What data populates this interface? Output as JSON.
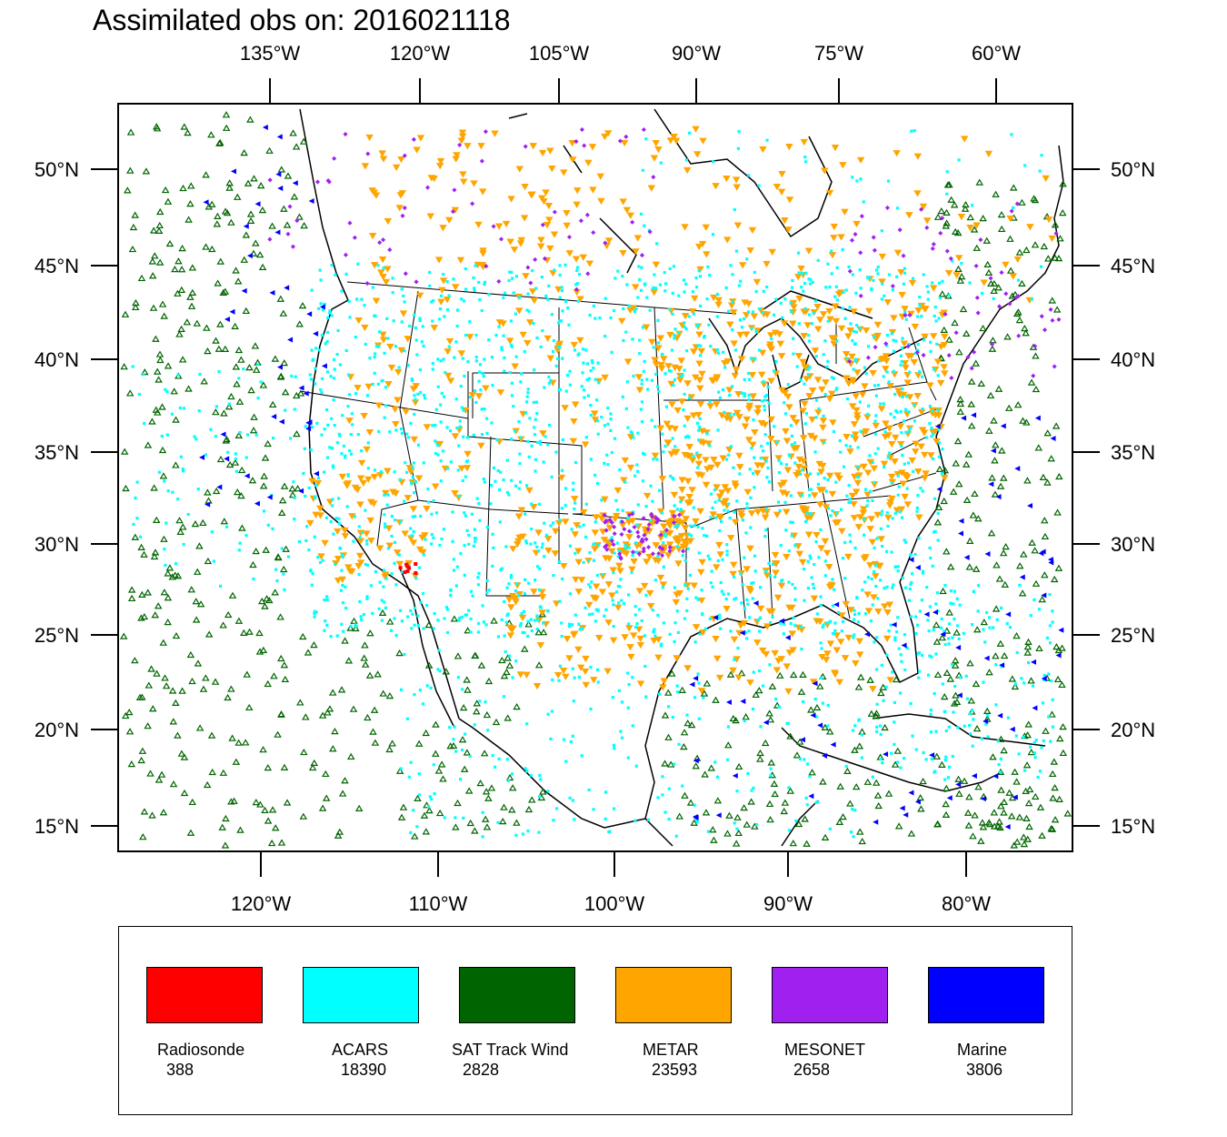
{
  "title": "Assimilated obs on: 2016021118",
  "top_lon_labels": [
    "135°W",
    "120°W",
    "105°W",
    "90°W",
    "75°W",
    "60°W"
  ],
  "bottom_lon_labels": [
    "120°W",
    "110°W",
    "100°W",
    "90°W",
    "80°W"
  ],
  "lat_labels": [
    "50°N",
    "45°N",
    "40°N",
    "35°N",
    "30°N",
    "25°N",
    "20°N",
    "15°N"
  ],
  "colors": {
    "radiosonde": "#ff0000",
    "acars": "#00ffff",
    "sat_track_wind": "#006400",
    "metar": "#ffa500",
    "mesonet": "#a020f0",
    "marine": "#0000ff",
    "coastline": "#000000"
  },
  "legend": [
    {
      "label": "Radiosonde",
      "count": "388",
      "color": "#ff0000"
    },
    {
      "label": "ACARS",
      "count": "18390",
      "color": "#00ffff"
    },
    {
      "label": "SAT Track Wind",
      "count": "2828",
      "color": "#006400"
    },
    {
      "label": "METAR",
      "count": "23593",
      "color": "#ffa500"
    },
    {
      "label": "MESONET",
      "count": "2658",
      "color": "#a020f0"
    },
    {
      "label": "Marine",
      "count": "3806",
      "color": "#0000ff"
    }
  ]
}
